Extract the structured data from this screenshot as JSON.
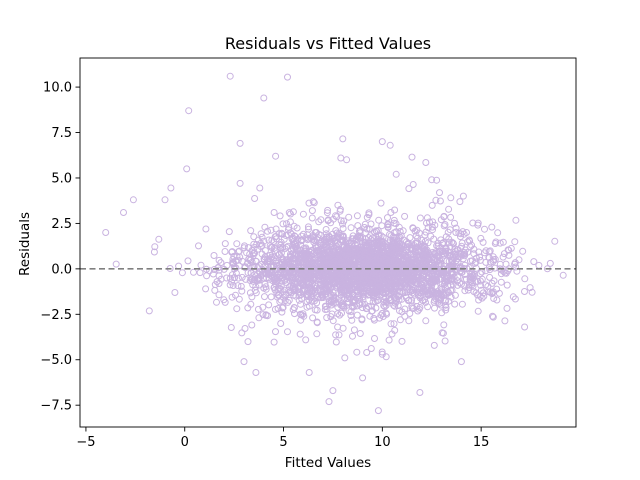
{
  "chart_data": {
    "type": "scatter",
    "title": "Residuals vs Fitted Values",
    "xlabel": "Fitted Values",
    "ylabel": "Residuals",
    "xlim": [
      -5.3,
      19.8
    ],
    "ylim": [
      -8.7,
      11.6
    ],
    "xticks": [
      -5,
      0,
      5,
      10,
      15
    ],
    "xtick_labels": [
      "−5",
      "0",
      "5",
      "10",
      "15"
    ],
    "yticks": [
      -7.5,
      -5.0,
      -2.5,
      0.0,
      2.5,
      5.0,
      7.5,
      10.0
    ],
    "ytick_labels": [
      "−7.5",
      "−5.0",
      "−2.5",
      "0.0",
      "2.5",
      "5.0",
      "7.5",
      "10.0"
    ],
    "marker": {
      "shape": "hollow-circle",
      "edge_color": "#c9b3e0"
    },
    "reference_line": {
      "y": 0,
      "style": "dashed",
      "color": "#808080"
    },
    "grid": false,
    "legend": "none",
    "n_points_approx": 3000,
    "x_center": 9,
    "distribution_note": "dense cloud centered at residual 0 across fitted values ~1 to ~17",
    "outliers": [
      {
        "x": 2.3,
        "y": 10.6
      },
      {
        "x": 5.2,
        "y": 10.55
      },
      {
        "x": 0.2,
        "y": 8.7
      },
      {
        "x": 4.0,
        "y": 9.4
      },
      {
        "x": 2.8,
        "y": 6.9
      },
      {
        "x": 4.6,
        "y": 6.2
      },
      {
        "x": 0.1,
        "y": 5.5
      },
      {
        "x": 8.0,
        "y": 7.15
      },
      {
        "x": 10.0,
        "y": 7.0
      },
      {
        "x": 10.4,
        "y": 6.8
      },
      {
        "x": 11.5,
        "y": 6.15
      },
      {
        "x": 12.2,
        "y": 5.85
      },
      {
        "x": 7.9,
        "y": 6.1
      },
      {
        "x": 10.7,
        "y": 5.2
      },
      {
        "x": 12.5,
        "y": 4.9
      },
      {
        "x": 2.8,
        "y": 4.7
      },
      {
        "x": 3.8,
        "y": 4.45
      },
      {
        "x": -0.7,
        "y": 4.45
      },
      {
        "x": -4.0,
        "y": 2.0
      },
      {
        "x": -3.1,
        "y": 3.1
      },
      {
        "x": -2.6,
        "y": 3.8
      },
      {
        "x": -1.0,
        "y": 3.8
      },
      {
        "x": 14.1,
        "y": 4.0
      },
      {
        "x": 18.5,
        "y": 0.3
      },
      {
        "x": -0.5,
        "y": -1.3
      },
      {
        "x": 17.2,
        "y": -3.2
      },
      {
        "x": 3.2,
        "y": -4.0
      },
      {
        "x": 3.6,
        "y": -5.7
      },
      {
        "x": 6.3,
        "y": -5.7
      },
      {
        "x": 7.5,
        "y": -6.7
      },
      {
        "x": 7.3,
        "y": -7.3
      },
      {
        "x": 9.0,
        "y": -6.0
      },
      {
        "x": 9.8,
        "y": -7.8
      },
      {
        "x": 11.9,
        "y": -6.8
      },
      {
        "x": 14.0,
        "y": -5.1
      },
      {
        "x": 10.0,
        "y": -4.7
      },
      {
        "x": 8.1,
        "y": -4.9
      },
      {
        "x": 3.0,
        "y": -5.1
      }
    ]
  }
}
